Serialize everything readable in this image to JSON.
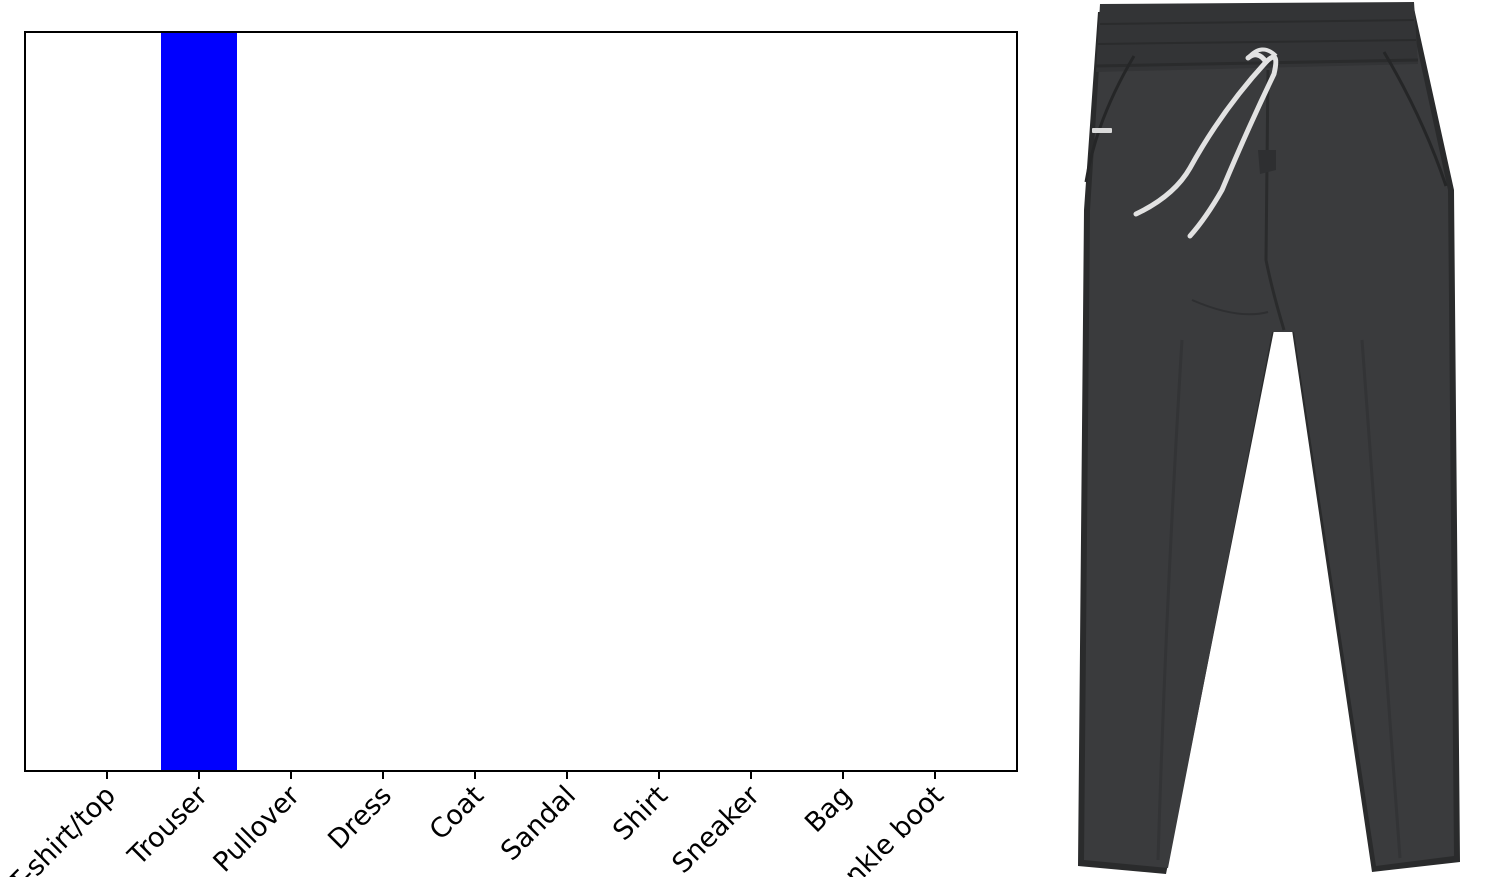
{
  "chart_data": {
    "type": "bar",
    "categories": [
      "T-shirt/top",
      "Trouser",
      "Pullover",
      "Dress",
      "Coat",
      "Sandal",
      "Shirt",
      "Sneaker",
      "Bag",
      "Ankle boot"
    ],
    "values": [
      0,
      1,
      0,
      0,
      0,
      0,
      0,
      0,
      0,
      0
    ],
    "title": "",
    "xlabel": "",
    "ylabel": "",
    "ylim": [
      0,
      1
    ],
    "y_ticks_visible": false,
    "grid": false,
    "legend": "none",
    "bar_color": "#0000ff",
    "axis_color": "#000000",
    "tick_label_rotation": -45
  },
  "image": {
    "subject": "trousers",
    "garment_color": "#3a3b3d",
    "drawstring_color": "#e2e2e2"
  }
}
